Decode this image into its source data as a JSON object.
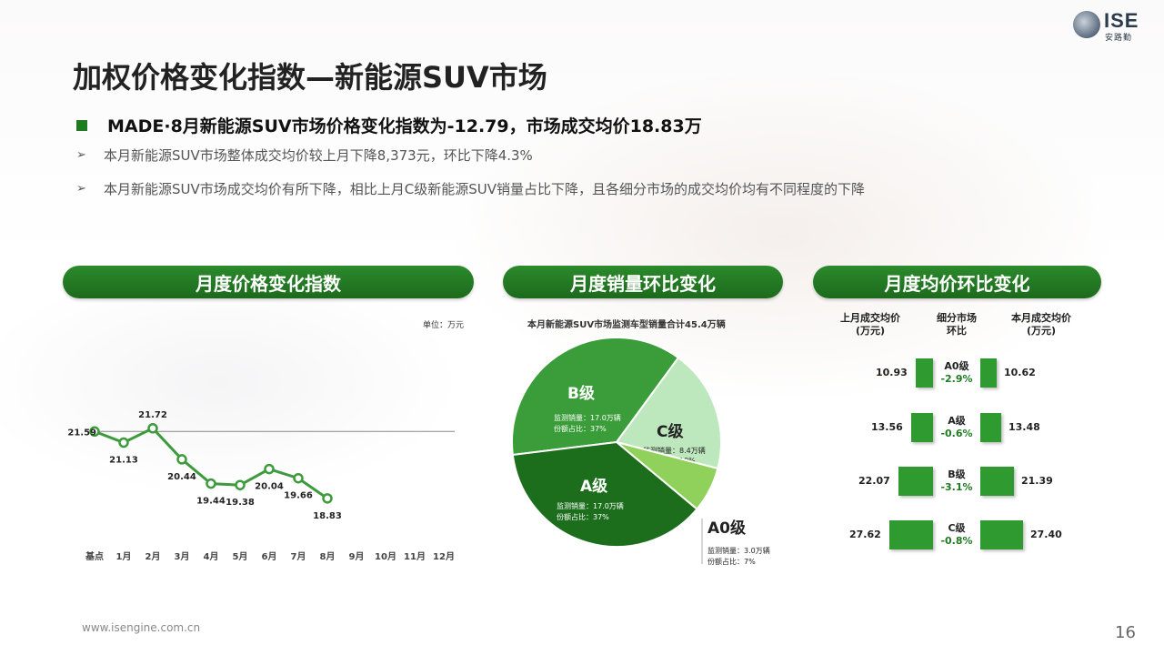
{
  "logo": {
    "name": "ISE",
    "sub": "安路勤"
  },
  "title": "加权价格变化指数—新能源SUV市场",
  "headline": "MADE·8月新能源SUV市场价格变化指数为-12.79，市场成交均价18.83万",
  "bullets": [
    "本月新能源SUV市场整体成交均价较上月下降8,373元，环比下降4.3%",
    "本月新能源SUV市场成交均价有所下降，相比上月C级新能源SUV销量占比下降，且各细分市场的成交均价均有不同程度的下降"
  ],
  "sections": {
    "index": "月度价格变化指数",
    "sales": "月度销量环比变化",
    "price": "月度均价环比变化"
  },
  "unit_label": "单位：万元",
  "pie_subtitle": "本月新能源SUV市场监测车型销量合计45.4万辆",
  "chart_data": [
    {
      "type": "line",
      "title": "月度价格变化指数",
      "categories": [
        "基点",
        "1月",
        "2月",
        "3月",
        "4月",
        "5月",
        "6月",
        "7月",
        "8月",
        "9月",
        "10月",
        "11月",
        "12月"
      ],
      "values": [
        21.59,
        21.13,
        21.72,
        20.44,
        19.44,
        19.38,
        20.04,
        19.66,
        18.83
      ],
      "labels": [
        "21.59",
        "21.13",
        "21.72",
        "20.44",
        "19.44",
        "19.38",
        "20.04",
        "19.66",
        "18.83"
      ],
      "baseline": 21.59,
      "ylim": [
        18.0,
        22.5
      ],
      "color": "#3d9b3d"
    },
    {
      "type": "pie",
      "title": "本月新能源SUV市场监测车型销量合计45.4万辆",
      "slices": [
        {
          "name": "B级",
          "value": 37,
          "sales": "监测销量：17.0万辆",
          "share": "份额占比：37%",
          "color": "#3a9d3a"
        },
        {
          "name": "C级",
          "value": 19,
          "sales": "监测销量：8.4万辆",
          "share": "份额占比：19%",
          "color": "#bde8bd"
        },
        {
          "name": "A0级",
          "value": 7,
          "sales": "监测销量：3.0万辆",
          "share": "份额占比：7%",
          "color": "#8fd15a"
        },
        {
          "name": "A级",
          "value": 37,
          "sales": "监测销量：17.0万辆",
          "share": "份额占比：37%",
          "color": "#1c6e1c"
        }
      ]
    },
    {
      "type": "bar",
      "title": "月度均价环比变化",
      "headers": {
        "prev": "上月成交均价\n(万元)",
        "seg": "细分市场\n环比",
        "cur": "本月成交均价\n(万元)"
      },
      "rows": [
        {
          "segment": "A0级",
          "change": "-2.9%",
          "prev": 10.93,
          "cur": 10.62
        },
        {
          "segment": "A级",
          "change": "-0.6%",
          "prev": 13.56,
          "cur": 13.48
        },
        {
          "segment": "B级",
          "change": "-3.1%",
          "prev": 22.07,
          "cur": 21.39
        },
        {
          "segment": "C级",
          "change": "-0.8%",
          "prev": 27.62,
          "cur": 27.4
        }
      ],
      "color": "#2f9a2f"
    }
  ],
  "footer": "www.isengine.com.cn",
  "page_number": "16"
}
